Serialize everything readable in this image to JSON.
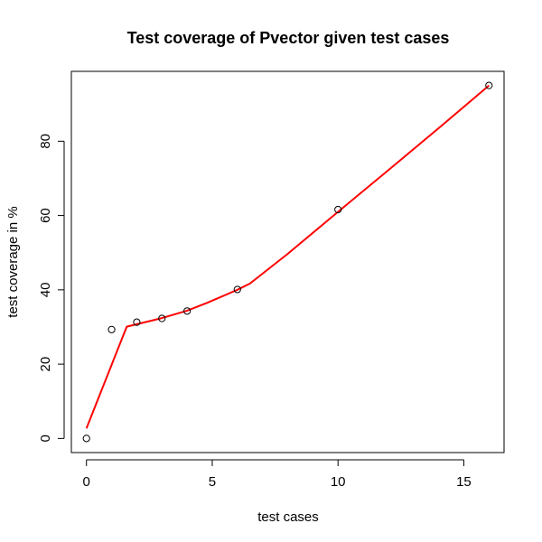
{
  "chart_data": {
    "type": "scatter",
    "title": "Test coverage of Pvector given test cases",
    "xlabel": "test cases",
    "ylabel": "test coverage in %",
    "xlim": [
      -0.6,
      16.6
    ],
    "ylim": [
      -3.8,
      98.8
    ],
    "x_ticks": [
      0,
      5,
      10,
      15
    ],
    "y_ticks": [
      0,
      20,
      40,
      60,
      80
    ],
    "grid": false,
    "legend": "none",
    "points": {
      "x": [
        0,
        1,
        2,
        3,
        4,
        6,
        10,
        16
      ],
      "y": [
        0,
        29.3,
        31.3,
        32.3,
        34.3,
        40.1,
        61.6,
        95
      ],
      "marker": "open-circle",
      "color": "#000000"
    },
    "fit_line": {
      "color": "#ff0000",
      "x": [
        0,
        1.6,
        3,
        4,
        4.8,
        6,
        6.5,
        8,
        10,
        12,
        14,
        16
      ],
      "y": [
        2.7,
        30.1,
        32.4,
        34.4,
        36.5,
        40,
        41.7,
        49.7,
        61,
        72.2,
        83.5,
        95
      ]
    }
  }
}
